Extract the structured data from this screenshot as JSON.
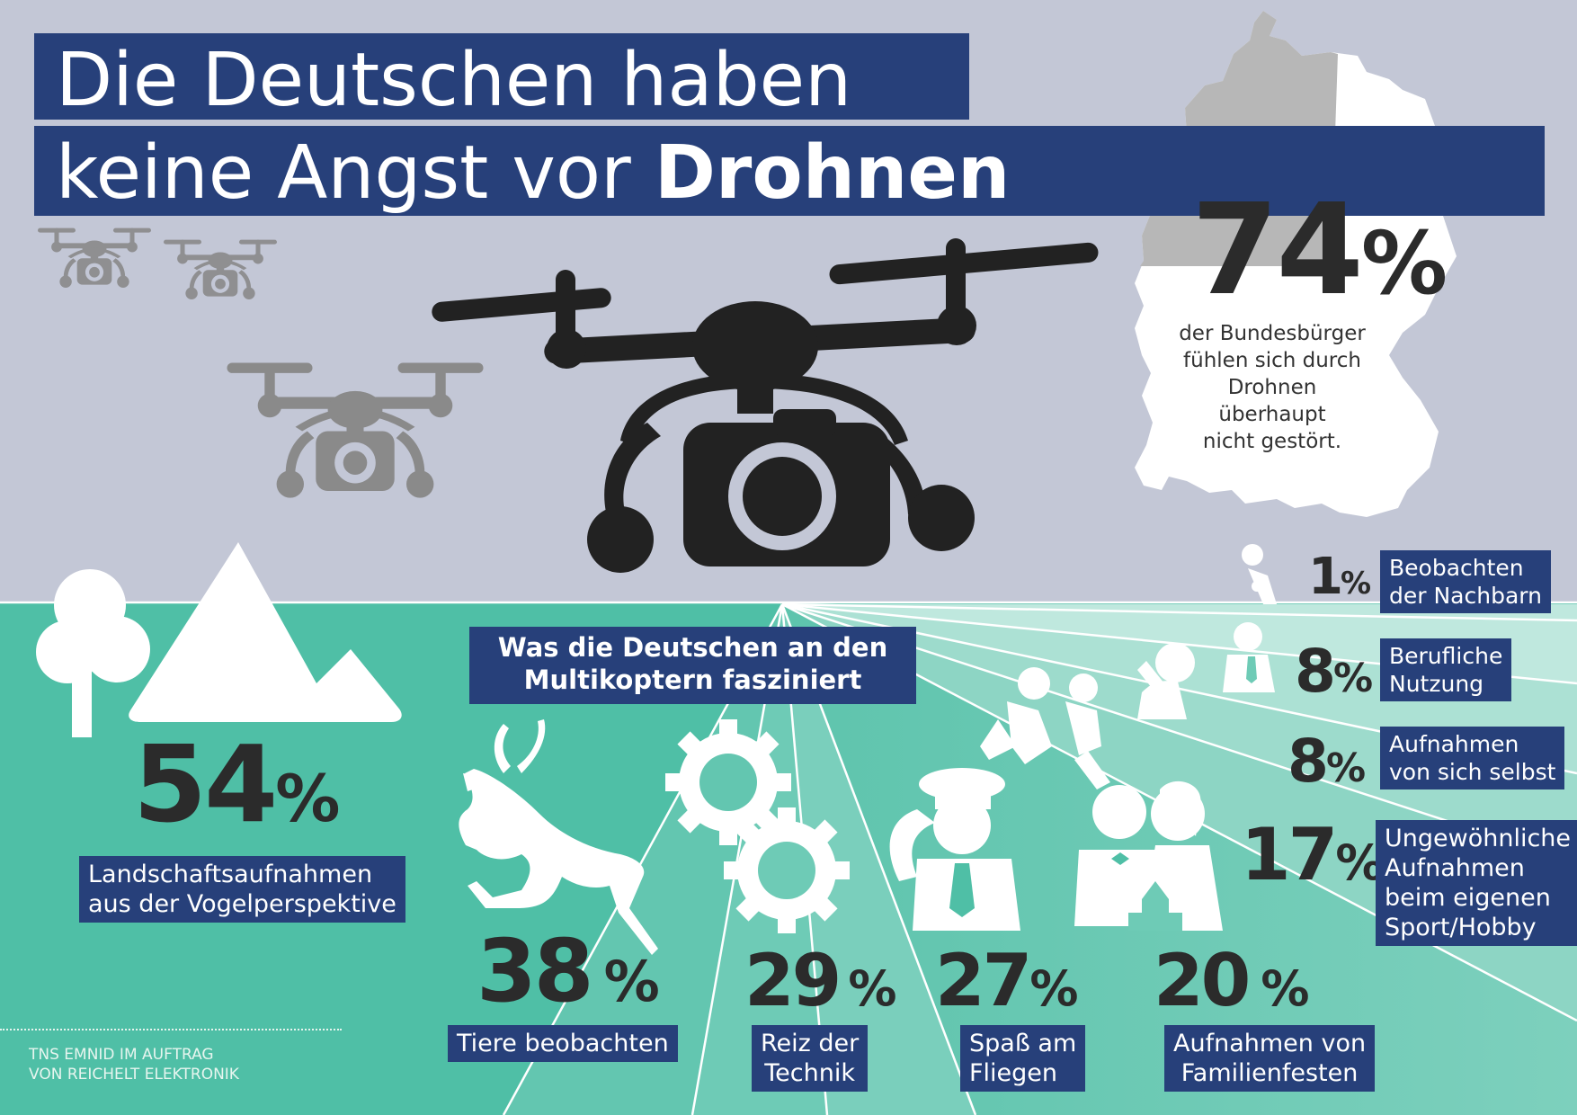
{
  "title": {
    "line1": "Die Deutschen haben",
    "line2": "keine Angst vor ",
    "emphasis": "Drohnen"
  },
  "main_stat": {
    "value": "74",
    "unit": "%",
    "text": "der Bundesbürger\nfühlen sich durch\nDrohnen\nüberhaupt\nnicht gestört."
  },
  "section_title": "Was die Deutschen an den\nMultikoptern fasziniert",
  "chart_data": {
    "type": "table",
    "title": "Was die Deutschen an den Multikoptern fasziniert",
    "unit": "%",
    "labels": [
      "Landschaftsaufnahmen\naus der Vogelperspektive",
      "Tiere beobachten",
      "Reiz der\nTechnik",
      "Spaß am\nFliegen",
      "Aufnahmen von\nFamilienfesten",
      "Ungewöhnliche\nAufnahmen\nbeim eigenen\nSport/Hobby",
      "Aufnahmen\nvon sich selbst",
      "Berufliche\nNutzung",
      "Beobachten\nder Nachbarn"
    ],
    "values": [
      54,
      38,
      29,
      27,
      20,
      17,
      8,
      8,
      1
    ]
  },
  "source": "TNS EMNID IM AUFTRAG\nVON REICHELT ELEKTRONIK",
  "colors": {
    "navy": "#27407a",
    "sky": "#c3c7d6",
    "green": "#4fbfa6",
    "dark": "#222222"
  }
}
